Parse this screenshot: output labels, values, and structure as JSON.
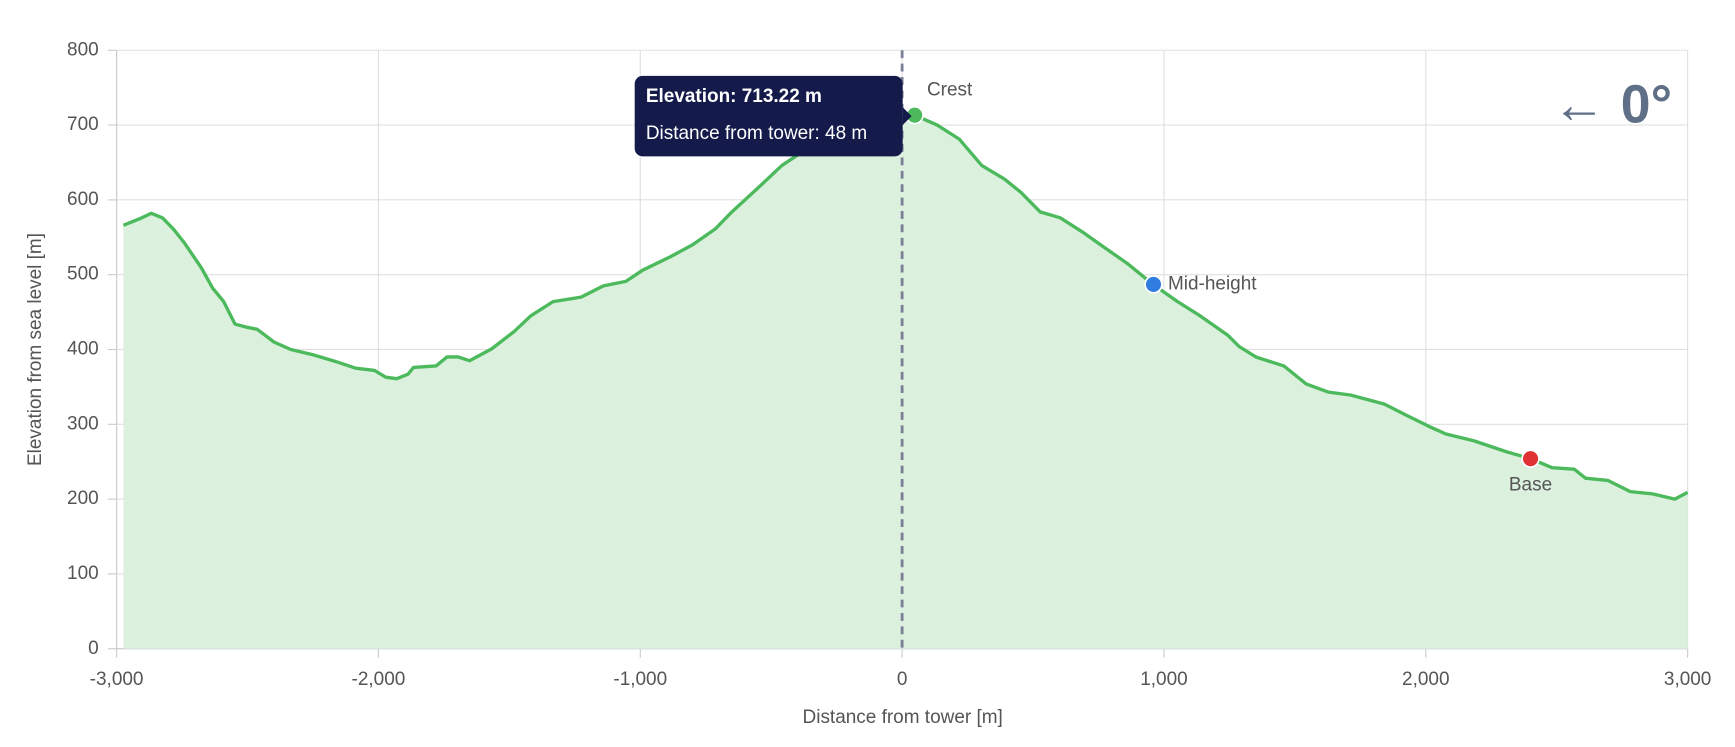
{
  "chart_data": {
    "type": "area",
    "xlabel": "Distance from tower [m]",
    "ylabel": "Elevation from sea level [m]",
    "x": [
      -2974,
      -2910,
      -2868,
      -2825,
      -2783,
      -2740,
      -2676,
      -2633,
      -2591,
      -2548,
      -2506,
      -2463,
      -2399,
      -2335,
      -2250,
      -2164,
      -2087,
      -2015,
      -1972,
      -1930,
      -1887,
      -1866,
      -1780,
      -1738,
      -1695,
      -1652,
      -1567,
      -1482,
      -1418,
      -1333,
      -1226,
      -1141,
      -1055,
      -991,
      -885,
      -800,
      -714,
      -650,
      -544,
      -459,
      -330,
      -202,
      -74,
      2,
      48,
      134,
      219,
      304,
      390,
      454,
      527,
      604,
      689,
      774,
      860,
      958,
      1052,
      1138,
      1244,
      1287,
      1351,
      1458,
      1543,
      1629,
      1714,
      1842,
      1927,
      2013,
      2077,
      2183,
      2311,
      2401,
      2482,
      2567,
      2610,
      2695,
      2781,
      2866,
      2951,
      3000
    ],
    "values": [
      566,
      575,
      582,
      576,
      561,
      542,
      509,
      482,
      464,
      434,
      430,
      427,
      410,
      400,
      393,
      384,
      375,
      372,
      363,
      361,
      367,
      376,
      378,
      390,
      390,
      385,
      401,
      424,
      445,
      464,
      470,
      485,
      491,
      506,
      524,
      540,
      561,
      584,
      618,
      646,
      676,
      700,
      709,
      713,
      713.22,
      700,
      681,
      646,
      628,
      610,
      584,
      576,
      557,
      536,
      515,
      487,
      464,
      445,
      419,
      404,
      390,
      378,
      354,
      343,
      339,
      327,
      312,
      297,
      287,
      278,
      263,
      254,
      242,
      240,
      228,
      225,
      210,
      207,
      200,
      209
    ],
    "color": "#4cba5c",
    "fill_color": "#dcf0de",
    "xlim": [
      -3000,
      3000
    ],
    "xticks": [
      {
        "value": -3000,
        "label": "-3,000"
      },
      {
        "value": -2000,
        "label": "-2,000"
      },
      {
        "value": -1000,
        "label": "-1,000"
      },
      0,
      {
        "value": 1000,
        "label": "1,000"
      },
      {
        "value": 2000,
        "label": "2,000"
      },
      {
        "value": 3000,
        "label": "3,000"
      }
    ],
    "ylim": [
      0,
      800
    ],
    "yticks": [
      0,
      100,
      200,
      300,
      400,
      500,
      600,
      700,
      800
    ],
    "grid": true,
    "reference_x": 0,
    "markers": [
      {
        "name": "Crest",
        "x": 48,
        "y": 713.22,
        "color": "#4cba5c",
        "label_position": "above-right"
      },
      {
        "name": "Mid-height",
        "x": 960,
        "y": 487,
        "color": "#2f7de1",
        "label_position": "right"
      },
      {
        "name": "Base",
        "x": 2400,
        "y": 254,
        "color": "#e03232",
        "label_position": "below"
      }
    ],
    "tooltip": [
      "Elevation: 713.22 m",
      "Distance from tower: 48 m"
    ],
    "direction": "← 0°"
  }
}
